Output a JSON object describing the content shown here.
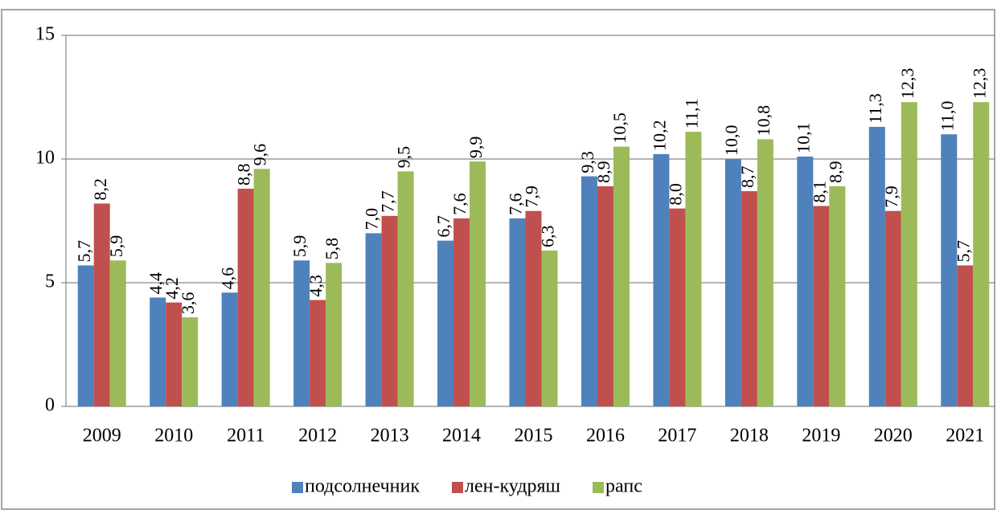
{
  "chart_data": {
    "type": "bar",
    "categories": [
      "2009",
      "2010",
      "2011",
      "2012",
      "2013",
      "2014",
      "2015",
      "2016",
      "2017",
      "2018",
      "2019",
      "2020",
      "2021"
    ],
    "series": [
      {
        "name": "подсолнечник",
        "color": "#4f81bd",
        "values": [
          5.7,
          4.4,
          4.6,
          5.9,
          7.0,
          6.7,
          7.6,
          9.3,
          10.2,
          10.0,
          10.1,
          11.3,
          11.0
        ],
        "value_labels": [
          "5,7",
          "4,4",
          "4,6",
          "5,9",
          "7,0",
          "6,7",
          "7,6",
          "9,3",
          "10,2",
          "10,0",
          "10,1",
          "11,3",
          "11,0"
        ]
      },
      {
        "name": "лен-кудряш",
        "color": "#c0504d",
        "values": [
          8.2,
          4.2,
          8.8,
          4.3,
          7.7,
          7.6,
          7.9,
          8.9,
          8.0,
          8.7,
          8.1,
          7.9,
          5.7
        ],
        "value_labels": [
          "8,2",
          "4,2",
          "8,8",
          "4,3",
          "7,7",
          "7,6",
          "7,9",
          "8,9",
          "8,0",
          "8,7",
          "8,1",
          "7,9",
          "5,7"
        ]
      },
      {
        "name": "рапс",
        "color": "#9bbb59",
        "values": [
          5.9,
          3.6,
          9.6,
          5.8,
          9.5,
          9.9,
          6.3,
          10.5,
          11.1,
          10.8,
          8.9,
          12.3,
          12.3
        ],
        "value_labels": [
          "5,9",
          "3,6",
          "9,6",
          "5,8",
          "9,5",
          "9,9",
          "6,3",
          "10,5",
          "11,1",
          "10,8",
          "8,9",
          "12,3",
          "12,3"
        ]
      }
    ],
    "ylim": [
      0,
      15
    ],
    "yticks": [
      0,
      5,
      10,
      15
    ],
    "grid": true,
    "legend": "bottom"
  }
}
